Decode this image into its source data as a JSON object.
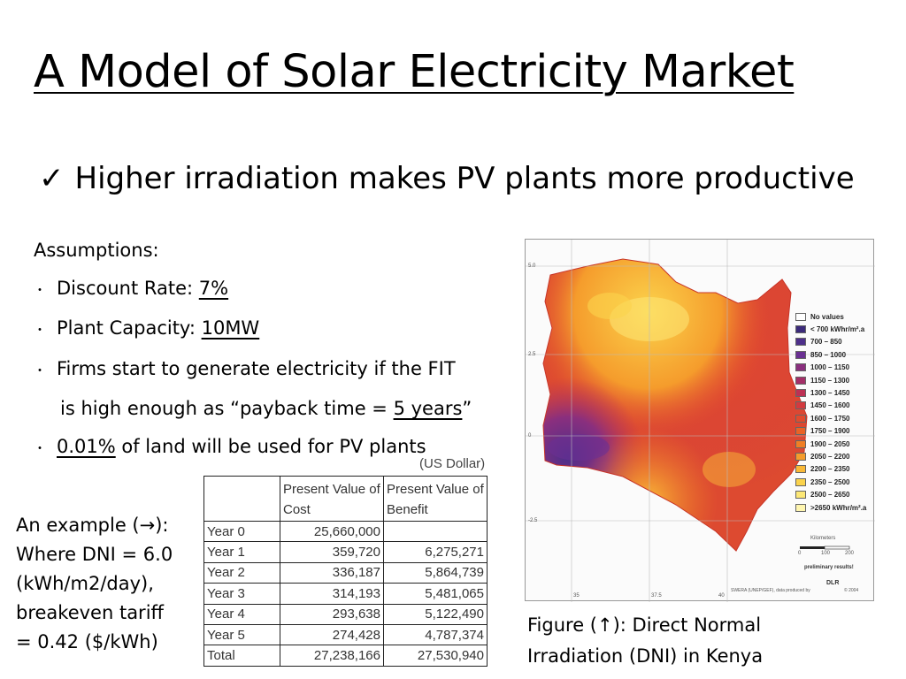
{
  "slide": {
    "title": "A Model of Solar Electricity Market",
    "main_bullet_check": "✓",
    "main_bullet": "Higher irradiation makes PV plants more productive"
  },
  "assumptions": {
    "heading": "Assumptions:",
    "dot": "・",
    "discount_label": "Discount Rate: ",
    "discount_value": "7%",
    "capacity_label": "Plant Capacity: ",
    "capacity_value": "10MW",
    "firms_line1": "Firms start to generate electricity if the FIT",
    "firms_line2_pre": "is high enough as “payback time = ",
    "firms_line2_value": "5 years",
    "firms_line2_post": "”",
    "land_value": "0.01%",
    "land_post": " of land will be used for PV plants"
  },
  "table": {
    "currency_note": "(US Dollar)",
    "headers": [
      "",
      "Present Value of Cost",
      "Present Value of Benefit"
    ],
    "rows": [
      [
        "Year 0",
        "25,660,000",
        ""
      ],
      [
        "Year 1",
        "359,720",
        "6,275,271"
      ],
      [
        "Year 2",
        "336,187",
        "5,864,739"
      ],
      [
        "Year 3",
        "314,193",
        "5,481,065"
      ],
      [
        "Year 4",
        "293,638",
        "5,122,490"
      ],
      [
        "Year 5",
        "274,428",
        "4,787,374"
      ],
      [
        "Total",
        "27,238,166",
        "27,530,940"
      ]
    ]
  },
  "example": {
    "line1": "An example (→):",
    "line2": "Where DNI = 6.0",
    "line3": "(kWh/m2/day),",
    "line4": "breakeven tariff",
    "line5": "= 0.42 ($/kWh)"
  },
  "map": {
    "legend": [
      {
        "label": "No values",
        "color": "#ffffff"
      },
      {
        "label": "< 700 kWhr/m².a",
        "color": "#3b2a7a"
      },
      {
        "label": "700 – 850",
        "color": "#4d2f8a"
      },
      {
        "label": "850 – 1000",
        "color": "#6a3092"
      },
      {
        "label": "1000 – 1150",
        "color": "#8a2f7e"
      },
      {
        "label": "1150 – 1300",
        "color": "#a42f68"
      },
      {
        "label": "1300 – 1450",
        "color": "#bd3154"
      },
      {
        "label": "1450 – 1600",
        "color": "#d33a3f"
      },
      {
        "label": "1600 – 1750",
        "color": "#e24a2d"
      },
      {
        "label": "1750 – 1900",
        "color": "#ea6226"
      },
      {
        "label": "1900 – 2050",
        "color": "#f07e24"
      },
      {
        "label": "2050 – 2200",
        "color": "#f59c2c"
      },
      {
        "label": "2200 – 2350",
        "color": "#f9b938"
      },
      {
        "label": "2350 – 2500",
        "color": "#fbd34c"
      },
      {
        "label": "2500 – 2650",
        "color": "#fde877"
      },
      {
        "label": ">2650 kWhr/m².a",
        "color": "#fff6b0"
      }
    ],
    "scale_label": "Kilometers",
    "scale_ticks": [
      "0",
      "100",
      "200"
    ],
    "preliminary_note": "preliminary results!",
    "credit": "SWERA (UNEP/GEF), data produced by",
    "credit_logo": "DLR",
    "credit_year": "© 2004",
    "lat_labels": [
      "5.0",
      "2.5",
      "0",
      "-2.5"
    ],
    "lon_labels": [
      "35",
      "37.5",
      "40"
    ]
  },
  "caption": {
    "line1": "Figure (↑): Direct Normal",
    "line2": "Irradiation (DNI) in Kenya"
  }
}
